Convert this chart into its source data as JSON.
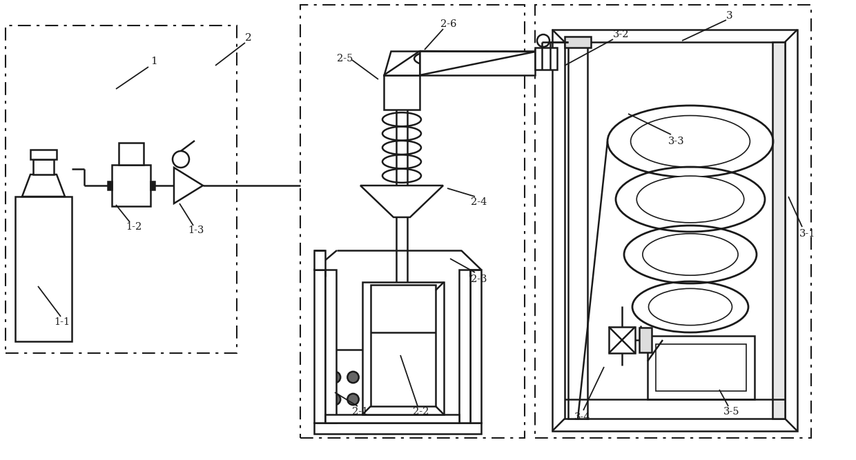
{
  "bg": "#ffffff",
  "lc": "#1a1a1a",
  "lw": 1.8,
  "fig_w": 12.4,
  "fig_h": 6.67
}
